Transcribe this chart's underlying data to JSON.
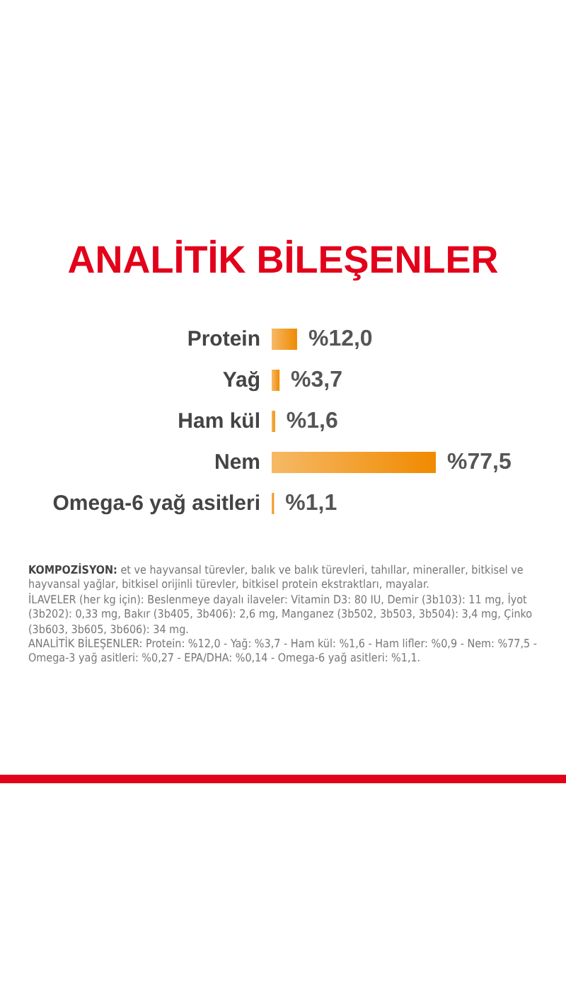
{
  "chart_data": {
    "type": "bar",
    "orientation": "horizontal",
    "title": "ANALİTİK BİLEŞENLER",
    "categories": [
      "Protein",
      "Yağ",
      "Ham kül",
      "Nem",
      "Omega-6 yağ asitleri"
    ],
    "values": [
      12.0,
      3.7,
      1.6,
      77.5,
      1.1
    ],
    "value_labels": [
      "%12,0",
      "%3,7",
      "%1,6",
      "%77,5",
      "%1,1"
    ],
    "color": "#f08a00",
    "annotations": [
      "KOMPOZİSYON: et ve hayvansal türevler, balık ve balık türevleri, tahıllar, mineraller, bitkisel ve hayvansal yağlar, bitkisel orijinli türevler, bitkisel protein ekstraktları, mayalar.",
      "İLAVELER (her kg için): Beslenmeye dayalı ilaveler: Vitamin D3: 80 IU, Demir (3b103): 11 mg, İyot (3b202): 0,33 mg, Bakır (3b405, 3b406): 2,6 mg, Manganez (3b502, 3b503, 3b504): 3,4 mg, Çinko (3b603, 3b605, 3b606): 34 mg.",
      "ANALİTİK BİLEŞENLER: Protein: %12,0 - Yağ: %3,7 - Ham kül: %1,6 - Ham lifler: %0,9 - Nem: %77,5 - Omega-3 yağ asitleri: %0,27 - EPA/DHA: %0,14 - Omega-6 yağ asitleri: %1,1."
    ]
  }
}
